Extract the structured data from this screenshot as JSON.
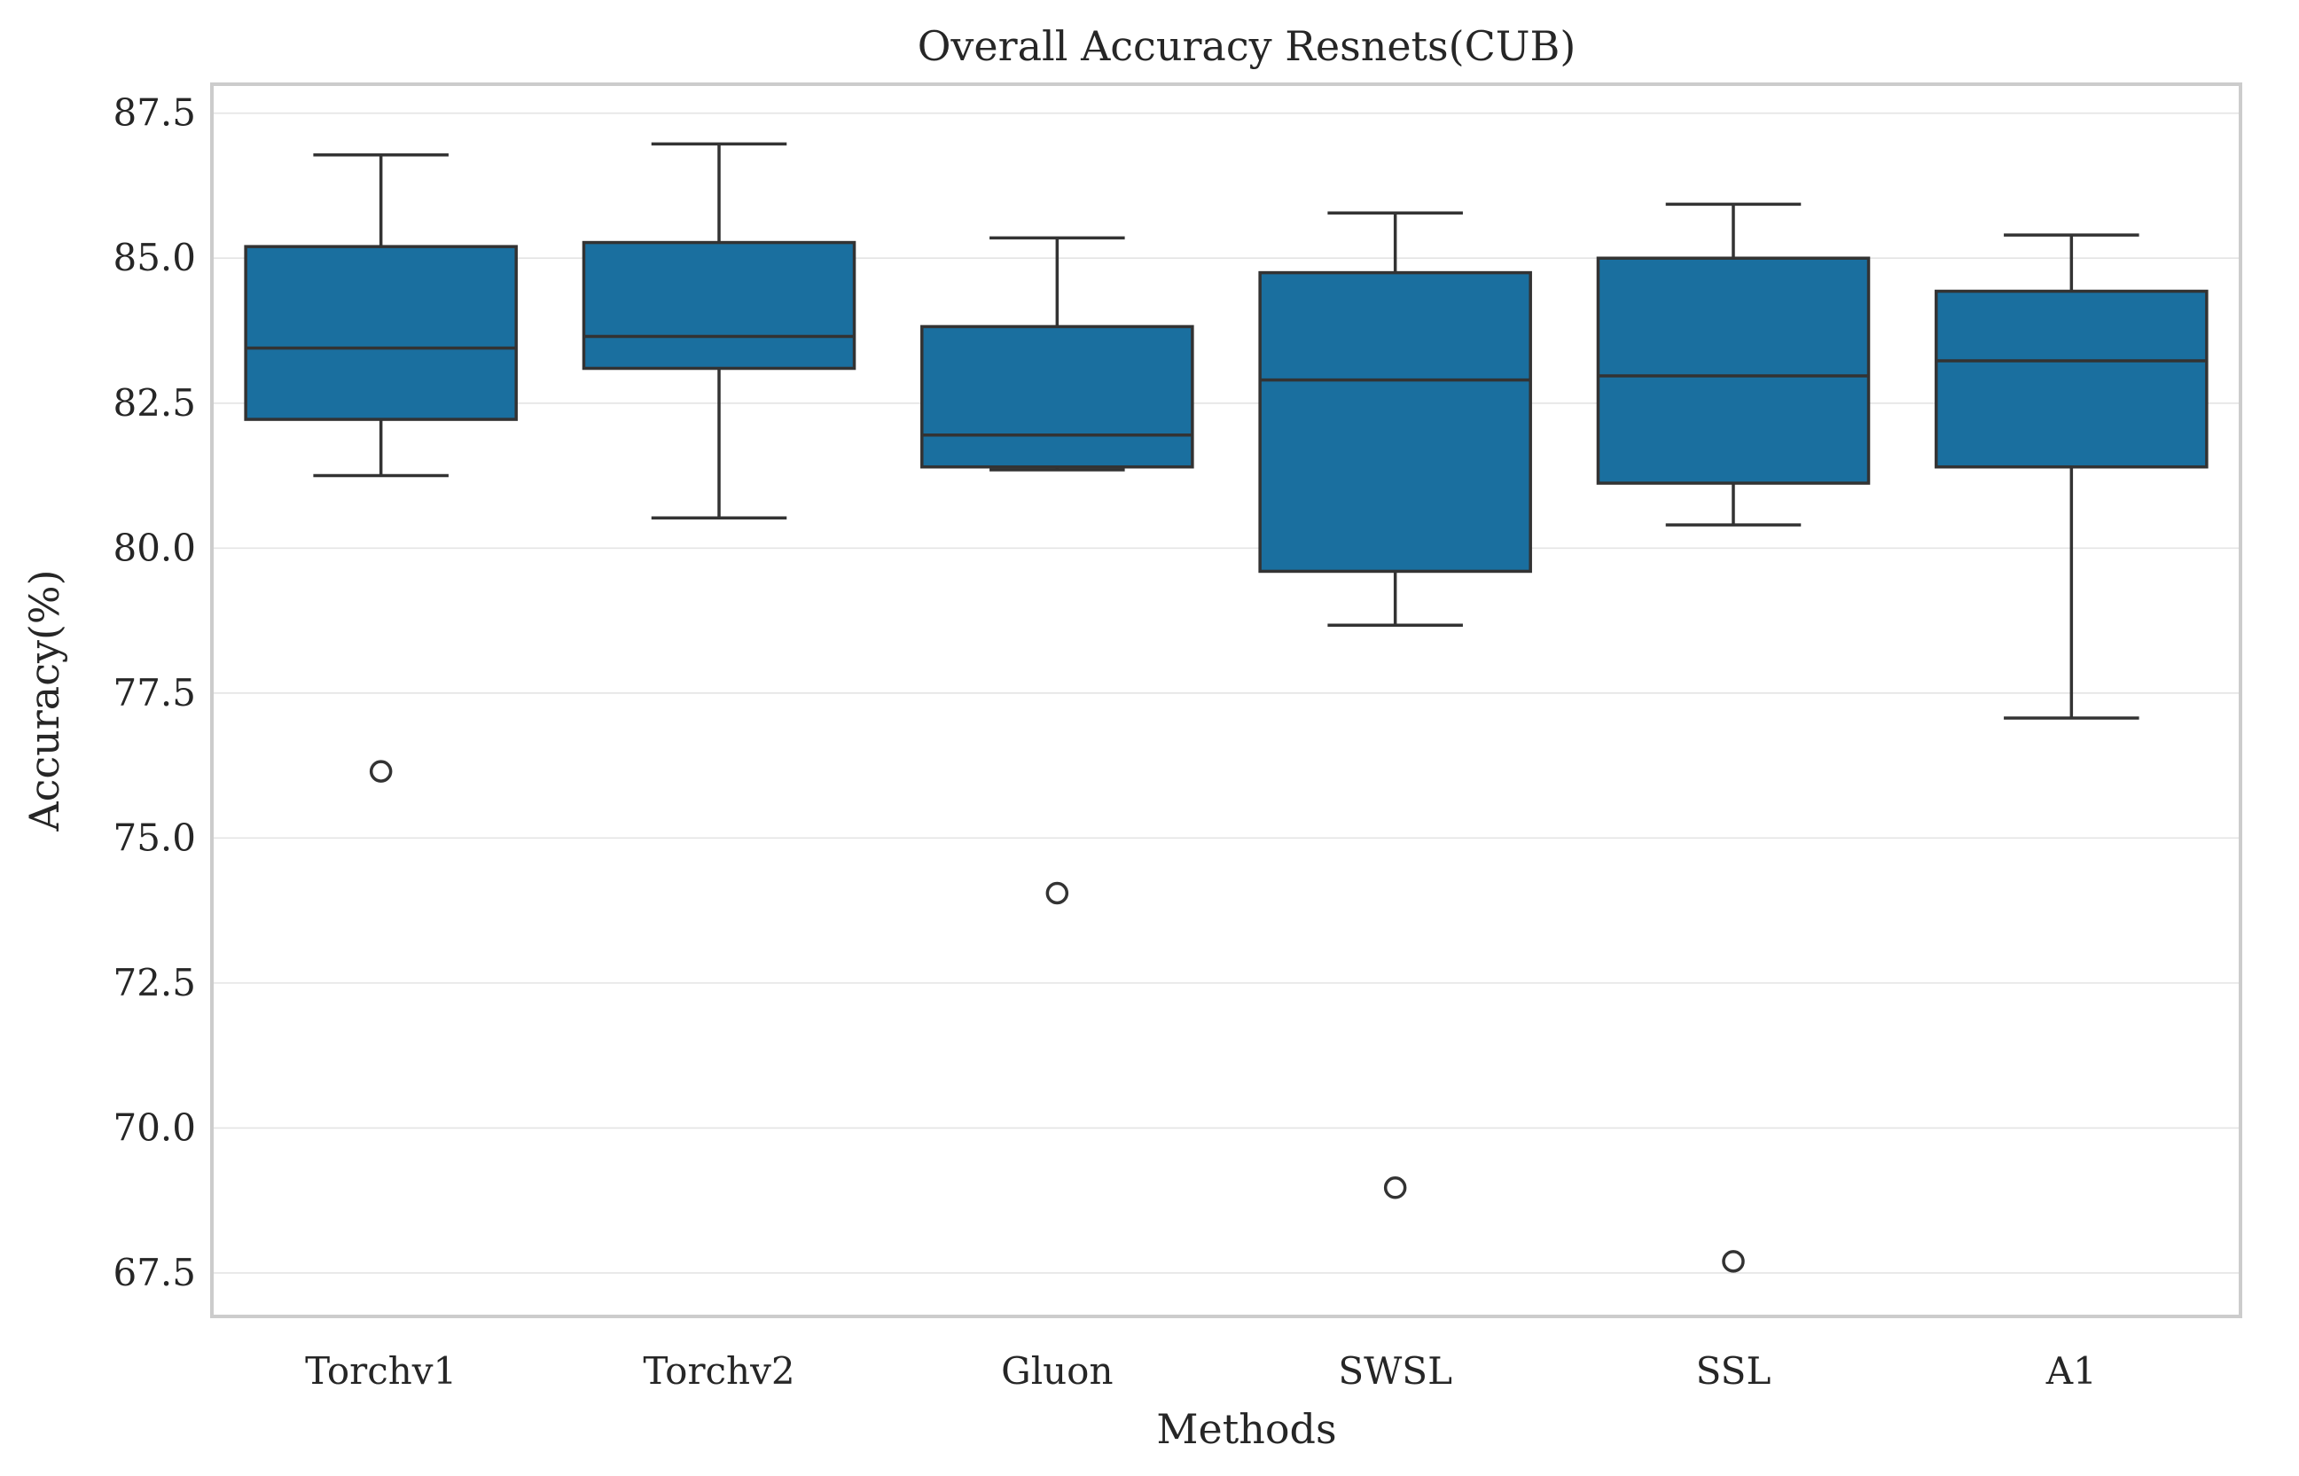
{
  "chart_data": {
    "type": "box",
    "title": "Overall Accuracy Resnets(CUB)",
    "xlabel": "Methods",
    "ylabel": "Accuracy(%)",
    "ylim": [
      66.75,
      88.0
    ],
    "yticks": [
      67.5,
      70.0,
      72.5,
      75.0,
      77.5,
      80.0,
      82.5,
      85.0,
      87.5
    ],
    "ytick_labels": [
      "67.5",
      "70.0",
      "72.5",
      "75.0",
      "77.5",
      "80.0",
      "82.5",
      "85.0",
      "87.5"
    ],
    "grid": true,
    "box_color": "#1a6f9f",
    "edge_color": "#333333",
    "categories": [
      "Torchv1",
      "Torchv2",
      "Gluon",
      "SWSL",
      "SSL",
      "A1"
    ],
    "boxes": [
      {
        "min": 81.25,
        "q1": 82.22,
        "median": 83.45,
        "q3": 85.2,
        "max": 86.78,
        "outliers": [
          76.15
        ]
      },
      {
        "min": 80.52,
        "q1": 83.1,
        "median": 83.65,
        "q3": 85.27,
        "max": 86.97,
        "outliers": []
      },
      {
        "min": 81.35,
        "q1": 81.4,
        "median": 81.95,
        "q3": 83.82,
        "max": 85.35,
        "outliers": [
          74.05
        ]
      },
      {
        "min": 78.67,
        "q1": 79.6,
        "median": 82.9,
        "q3": 84.75,
        "max": 85.78,
        "outliers": [
          68.97
        ]
      },
      {
        "min": 80.4,
        "q1": 81.12,
        "median": 82.97,
        "q3": 85.0,
        "max": 85.93,
        "outliers": [
          67.7
        ]
      },
      {
        "min": 77.07,
        "q1": 81.4,
        "median": 83.23,
        "q3": 84.43,
        "max": 85.4,
        "outliers": []
      }
    ]
  }
}
